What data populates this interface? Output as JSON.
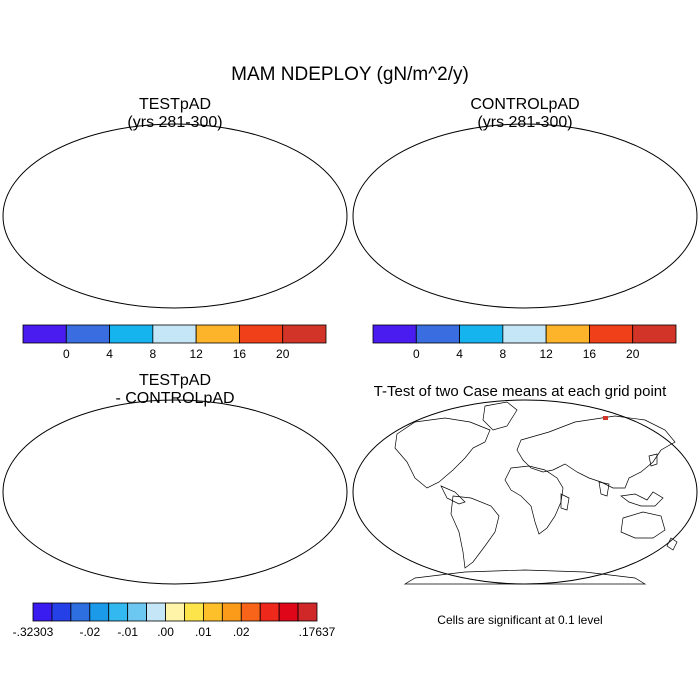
{
  "title": "MAM NDEPLOY (gN/m^2/y)",
  "panels": [
    {
      "title_line1": "TESTpAD",
      "title_line2": "(yrs 281-300)"
    },
    {
      "title_line1": "CONTROLpAD",
      "title_line2": "(yrs 281-300)"
    },
    {
      "title_line1": "TESTpAD",
      "title_line2": "- CONTROLpAD"
    },
    {
      "title_line1": "T-Test of two Case means at each grid point"
    }
  ],
  "significance_note": "Cells are significant at 0.1 level",
  "colorbar_top": {
    "colors": [
      "#4a1cf0",
      "#3a6ee0",
      "#16b4ef",
      "#c4e6f6",
      "#fdb42a",
      "#f0401a",
      "#d23428"
    ],
    "labels": [
      "0",
      "4",
      "8",
      "12",
      "16",
      "20"
    ]
  },
  "colorbar_diff": {
    "colors": [
      "#3a1cf0",
      "#2640e8",
      "#2d6ee0",
      "#1a9ae8",
      "#33b8ef",
      "#6cc8f0",
      "#c4e6f6",
      "#fff4a8",
      "#fde44a",
      "#fdc02a",
      "#fc9a1a",
      "#f8641a",
      "#ee281a",
      "#e0061a",
      "#d02828"
    ],
    "labels": [
      "-.32303",
      "-.02",
      "-.01",
      ".00",
      ".01",
      ".02",
      ".17637"
    ]
  }
}
